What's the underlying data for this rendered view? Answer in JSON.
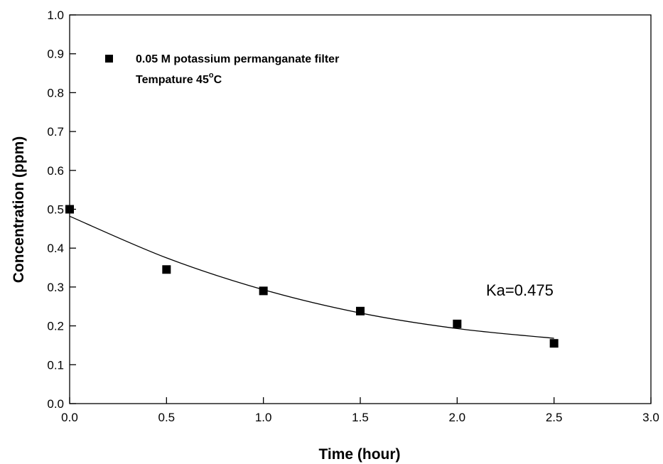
{
  "chart_data": {
    "type": "scatter",
    "title": "",
    "xlabel": "Time (hour)",
    "ylabel": "Concentration (ppm)",
    "xlim": [
      0.0,
      3.0
    ],
    "ylim": [
      0.0,
      1.0
    ],
    "x_ticks": [
      "0.0",
      "0.5",
      "1.0",
      "1.5",
      "2.0",
      "2.5",
      "3.0"
    ],
    "y_ticks": [
      "0.0",
      "0.1",
      "0.2",
      "0.3",
      "0.4",
      "0.5",
      "0.6",
      "0.7",
      "0.8",
      "0.9",
      "1.0"
    ],
    "grid": false,
    "legend_position": "top-left",
    "series": [
      {
        "name": "0.05 M potassium permanganate filter",
        "marker": "square",
        "color": "#000000",
        "x": [
          0.0,
          0.5,
          1.0,
          1.5,
          2.0,
          2.5
        ],
        "y": [
          0.5,
          0.345,
          0.29,
          0.238,
          0.205,
          0.155
        ]
      }
    ],
    "fit_curve": {
      "color": "#000000",
      "x": [
        0.0,
        0.5,
        1.0,
        1.5,
        2.0,
        2.5
      ],
      "y": [
        0.482,
        0.375,
        0.293,
        0.233,
        0.193,
        0.168
      ]
    },
    "legend_subtitle": {
      "prefix": "Tempature 45",
      "superscript": "o",
      "suffix": "C"
    },
    "annotations": [
      {
        "text": "Ka=0.475"
      }
    ]
  }
}
